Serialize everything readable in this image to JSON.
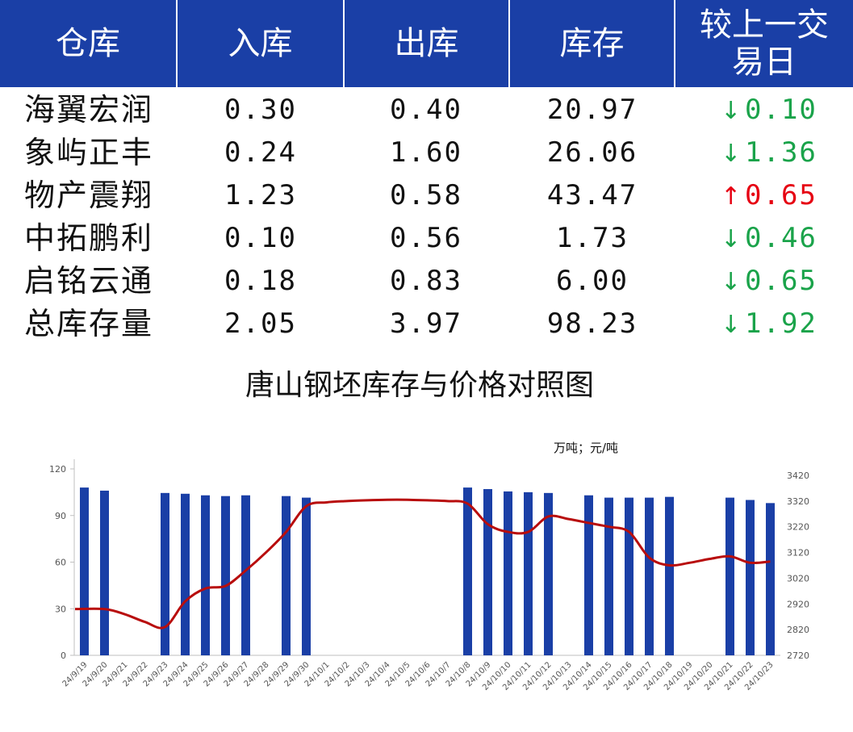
{
  "table": {
    "headers": [
      "仓库",
      "入库",
      "出库",
      "库存",
      "较上一交\n易日"
    ],
    "rows": [
      {
        "name": "海翼宏润",
        "in": "0.30",
        "out": "0.40",
        "stock": "20.97",
        "dir": "down",
        "change": "0.10"
      },
      {
        "name": "象屿正丰",
        "in": "0.24",
        "out": "1.60",
        "stock": "26.06",
        "dir": "down",
        "change": "1.36"
      },
      {
        "name": "物产震翔",
        "in": "1.23",
        "out": "0.58",
        "stock": "43.47",
        "dir": "up",
        "change": "0.65"
      },
      {
        "name": "中拓鹏利",
        "in": "0.10",
        "out": "0.56",
        "stock": "1.73",
        "dir": "down",
        "change": "0.46"
      },
      {
        "name": "启铭云通",
        "in": "0.18",
        "out": "0.83",
        "stock": "6.00",
        "dir": "down",
        "change": "0.65"
      },
      {
        "name": "总库存量",
        "in": "2.05",
        "out": "3.97",
        "stock": "98.23",
        "dir": "down",
        "change": "1.92"
      }
    ],
    "colors": {
      "header_bg": "#1a3fa6",
      "down": "#1aa34a",
      "up": "#e60012"
    },
    "arrow_glyphs": {
      "down": "↓",
      "up": "↑"
    }
  },
  "chart_data": {
    "type": "bar+line",
    "title": "唐山钢坯库存与价格对照图",
    "units": "万吨；元/吨",
    "categories": [
      "24/9/19",
      "24/9/20",
      "24/9/21",
      "24/9/22",
      "24/9/23",
      "24/9/24",
      "24/9/25",
      "24/9/26",
      "24/9/27",
      "24/9/28",
      "24/9/29",
      "24/9/30",
      "24/10/1",
      "24/10/2",
      "24/10/3",
      "24/10/4",
      "24/10/5",
      "24/10/6",
      "24/10/7",
      "24/10/8",
      "24/10/9",
      "24/10/10",
      "24/10/11",
      "24/10/12",
      "24/10/13",
      "24/10/14",
      "24/10/15",
      "24/10/16",
      "24/10/17",
      "24/10/18",
      "24/10/19",
      "24/10/20",
      "24/10/21",
      "24/10/22",
      "24/10/23"
    ],
    "series": [
      {
        "axis": "left",
        "kind": "bar",
        "color": "#1a3fa6",
        "values": [
          108,
          106,
          null,
          null,
          104.5,
          104,
          103,
          102.5,
          103,
          null,
          102.5,
          101.5,
          null,
          null,
          null,
          null,
          null,
          null,
          null,
          108,
          107,
          105.5,
          105,
          104.5,
          null,
          103,
          101.5,
          101.5,
          101.5,
          102,
          null,
          null,
          101.5,
          100,
          98
        ]
      },
      {
        "axis": "right",
        "kind": "line",
        "color": "#b80d0d",
        "values": [
          2900,
          2900,
          2880,
          2850,
          2830,
          2930,
          2980,
          2990,
          3050,
          3120,
          3200,
          3300,
          3315,
          3320,
          3323,
          3325,
          3325,
          3323,
          3320,
          3310,
          3230,
          3200,
          3200,
          3260,
          3250,
          3235,
          3220,
          3200,
          3100,
          3070,
          3080,
          3095,
          3105,
          3080,
          3085
        ]
      }
    ],
    "y_left": {
      "min": 0,
      "max": 120,
      "ticks": [
        0,
        30,
        60,
        90,
        120
      ]
    },
    "y_right": {
      "min": 2720,
      "max": 3420,
      "ticks": [
        2720,
        2820,
        2920,
        3020,
        3120,
        3220,
        3320,
        3420
      ]
    },
    "grid": false,
    "legend": "none"
  }
}
